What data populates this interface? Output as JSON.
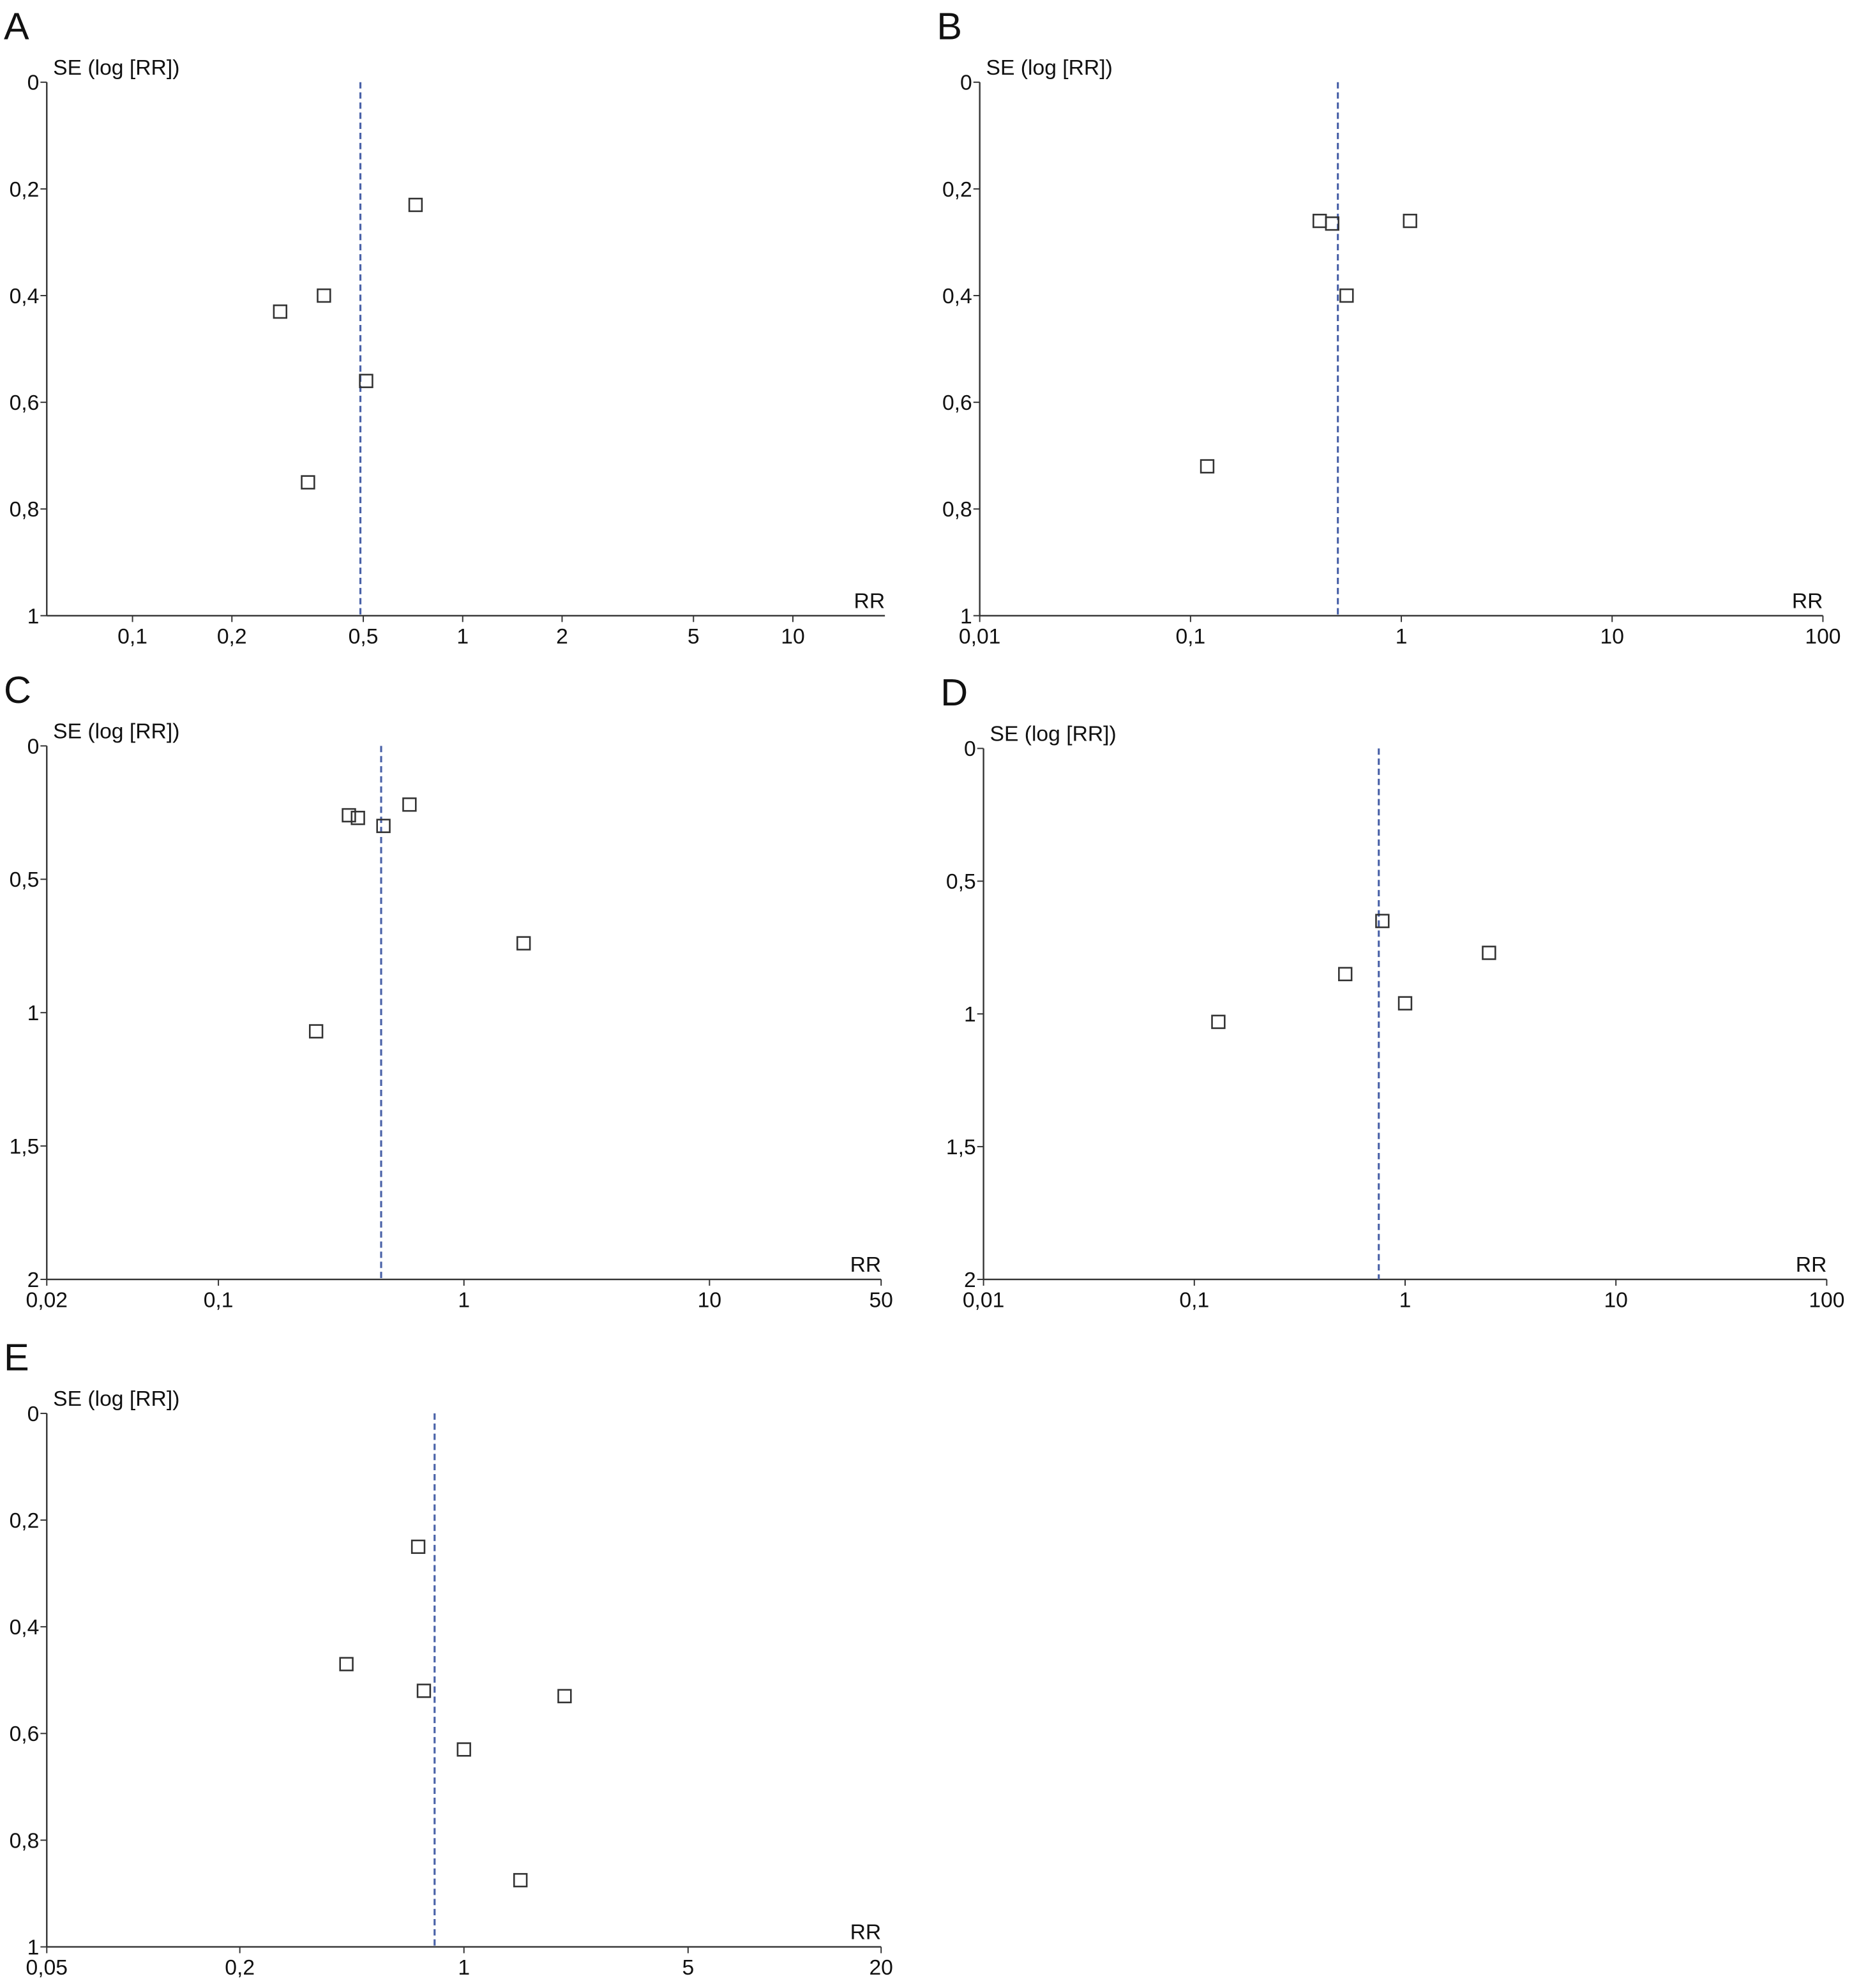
{
  "chart_data": [
    {
      "type": "scatter",
      "panel": "A",
      "y_label": "SE (log [RR])",
      "x_label": "RR",
      "log_x": true,
      "y_inverted": true,
      "color": "#333333",
      "reference_color": "#4a62a8",
      "reference_x": 0.49,
      "x": [
        0.72,
        0.38,
        0.28,
        0.51,
        0.34
      ],
      "values": [
        0.23,
        0.4,
        0.43,
        0.56,
        0.75
      ],
      "xlim": [
        0.055,
        19
      ],
      "ylim": [
        0,
        1
      ],
      "xticks": [
        {
          "value": 0.1,
          "label": "0,1"
        },
        {
          "value": 0.2,
          "label": "0,2"
        },
        {
          "value": 0.5,
          "label": "0,5"
        },
        1,
        2,
        5,
        10
      ],
      "yticks": [
        0,
        {
          "value": 0.2,
          "label": "0,2"
        },
        {
          "value": 0.4,
          "label": "0,4"
        },
        {
          "value": 0.6,
          "label": "0,6"
        },
        {
          "value": 0.8,
          "label": "0,8"
        },
        1
      ]
    },
    {
      "type": "scatter",
      "panel": "B",
      "y_label": "SE (log [RR])",
      "x_label": "RR",
      "log_x": true,
      "y_inverted": true,
      "color": "#333333",
      "reference_color": "#4a62a8",
      "reference_x": 0.5,
      "x": [
        0.41,
        0.47,
        1.1,
        0.55,
        0.12
      ],
      "values": [
        0.26,
        0.265,
        0.26,
        0.4,
        0.72
      ],
      "xlim": [
        0.01,
        100
      ],
      "ylim": [
        0,
        1
      ],
      "xticks": [
        {
          "value": 0.01,
          "label": "0,01"
        },
        {
          "value": 0.1,
          "label": "0,1"
        },
        1,
        10,
        100
      ],
      "yticks": [
        0,
        {
          "value": 0.2,
          "label": "0,2"
        },
        {
          "value": 0.4,
          "label": "0,4"
        },
        {
          "value": 0.6,
          "label": "0,6"
        },
        {
          "value": 0.8,
          "label": "0,8"
        },
        1
      ]
    },
    {
      "type": "scatter",
      "panel": "C",
      "y_label": "SE (log [RR])",
      "x_label": "RR",
      "log_x": true,
      "y_inverted": true,
      "color": "#333333",
      "reference_color": "#4a62a8",
      "reference_x": 0.46,
      "x": [
        0.34,
        0.37,
        0.47,
        0.6,
        1.75,
        0.25
      ],
      "values": [
        0.26,
        0.27,
        0.3,
        0.22,
        0.74,
        1.07
      ],
      "xlim": [
        0.02,
        50
      ],
      "ylim": [
        0,
        2
      ],
      "xticks": [
        {
          "value": 0.02,
          "label": "0,02"
        },
        {
          "value": 0.1,
          "label": "0,1"
        },
        1,
        10,
        50
      ],
      "yticks": [
        0,
        {
          "value": 0.5,
          "label": "0,5"
        },
        1,
        {
          "value": 1.5,
          "label": "1,5"
        },
        2
      ]
    },
    {
      "type": "scatter",
      "panel": "D",
      "y_label": "SE (log [RR])",
      "x_label": "RR",
      "log_x": true,
      "y_inverted": true,
      "color": "#333333",
      "reference_color": "#4a62a8",
      "reference_x": 0.75,
      "x": [
        0.78,
        0.52,
        2.5,
        1.0,
        0.13
      ],
      "values": [
        0.65,
        0.85,
        0.77,
        0.96,
        1.03
      ],
      "xlim": [
        0.01,
        100
      ],
      "ylim": [
        0,
        2
      ],
      "xticks": [
        {
          "value": 0.01,
          "label": "0,01"
        },
        {
          "value": 0.1,
          "label": "0,1"
        },
        1,
        10,
        100
      ],
      "yticks": [
        0,
        {
          "value": 0.5,
          "label": "0,5"
        },
        1,
        {
          "value": 1.5,
          "label": "1,5"
        },
        2
      ]
    },
    {
      "type": "scatter",
      "panel": "E",
      "y_label": "SE (log [RR])",
      "x_label": "RR",
      "log_x": true,
      "y_inverted": true,
      "color": "#333333",
      "reference_color": "#4a62a8",
      "reference_x": 0.81,
      "x": [
        0.72,
        0.43,
        0.75,
        2.06,
        1.0,
        1.5
      ],
      "values": [
        0.25,
        0.47,
        0.52,
        0.53,
        0.63,
        0.875
      ],
      "xlim": [
        0.05,
        20
      ],
      "ylim": [
        0,
        1
      ],
      "xticks": [
        {
          "value": 0.05,
          "label": "0,05"
        },
        {
          "value": 0.2,
          "label": "0,2"
        },
        1,
        5,
        20
      ],
      "yticks": [
        0,
        {
          "value": 0.2,
          "label": "0,2"
        },
        {
          "value": 0.4,
          "label": "0,4"
        },
        {
          "value": 0.6,
          "label": "0,6"
        },
        {
          "value": 0.8,
          "label": "0,8"
        },
        1
      ]
    }
  ]
}
